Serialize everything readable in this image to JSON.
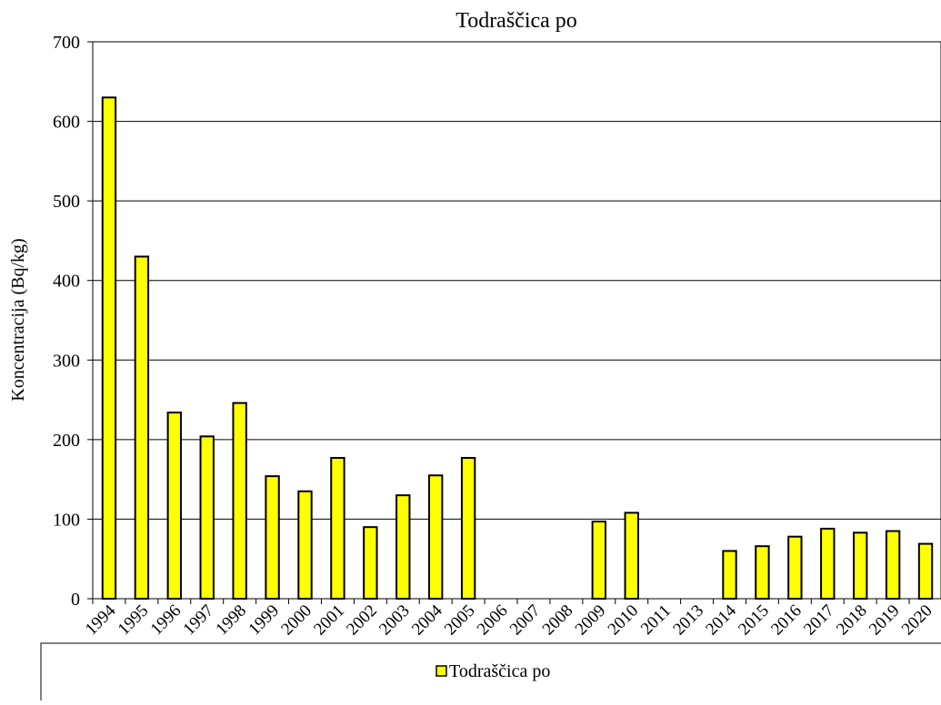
{
  "chart_data": {
    "type": "bar",
    "title": "Todraščica po",
    "y_label": "Koncentracija (Bq/kg)",
    "categories": [
      "1994",
      "1995",
      "1996",
      "1997",
      "1998",
      "1999",
      "2000",
      "2001",
      "2002",
      "2003",
      "2004",
      "2005",
      "2006",
      "2007",
      "2008",
      "2009",
      "2010",
      "2011",
      "2013",
      "2014",
      "2015",
      "2016",
      "2017",
      "2018",
      "2019",
      "2020"
    ],
    "series": [
      {
        "name": "Todraščica po",
        "color": "#ffff00",
        "values": [
          630,
          430,
          234,
          204,
          246,
          154,
          135,
          177,
          90,
          130,
          155,
          177,
          null,
          null,
          null,
          97,
          108,
          null,
          null,
          60,
          66,
          78,
          88,
          83,
          85,
          69
        ]
      }
    ],
    "ylim": [
      0,
      700
    ],
    "yticks": [
      0,
      100,
      200,
      300,
      400,
      500,
      600,
      700
    ],
    "grid": true,
    "legend": "bottom"
  }
}
